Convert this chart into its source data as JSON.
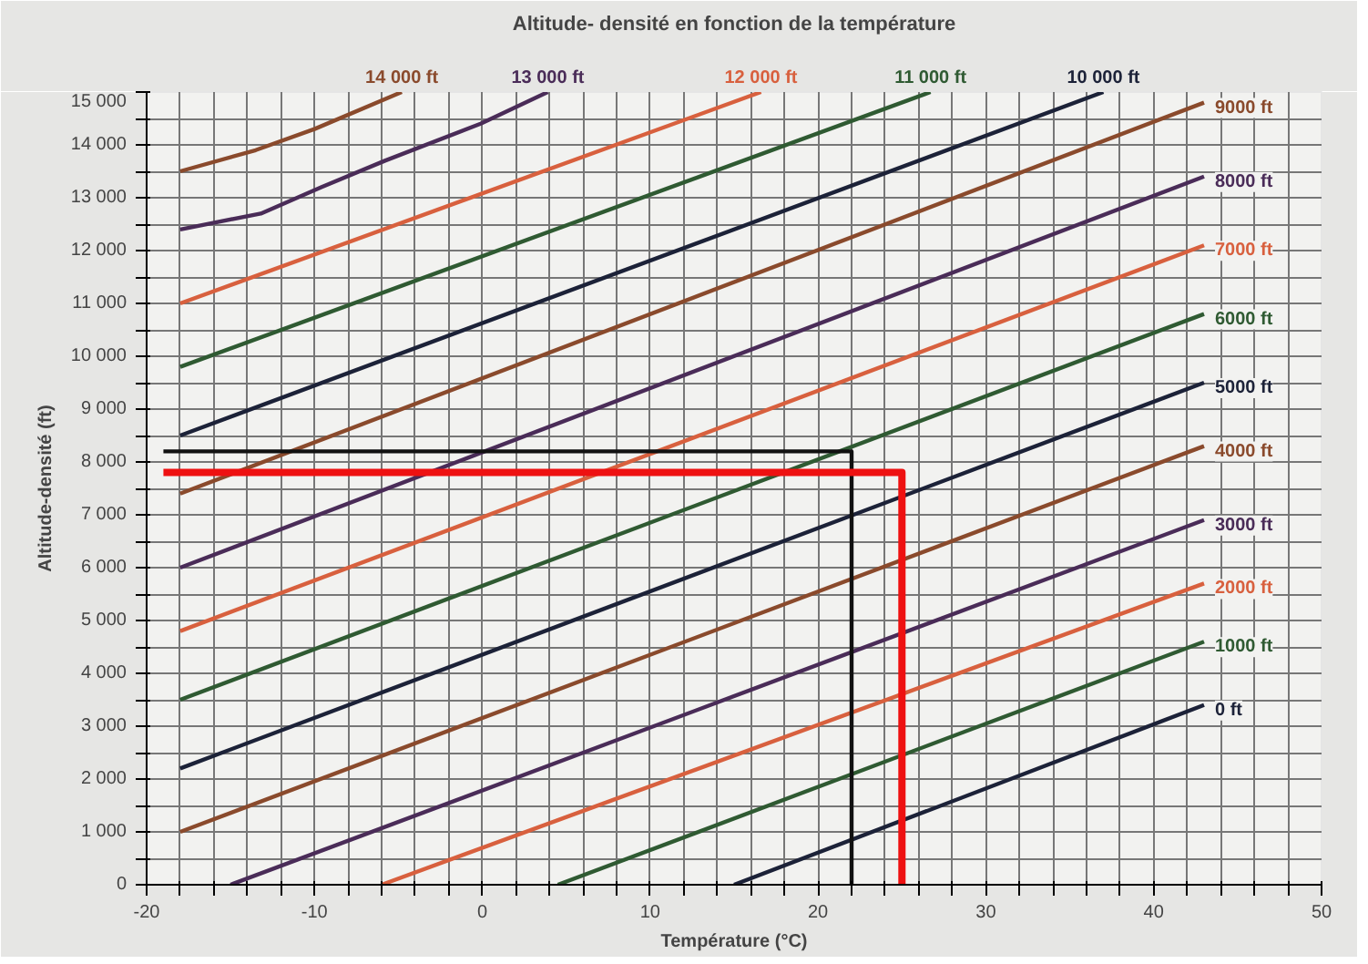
{
  "chart_data": {
    "type": "line",
    "title": "Altitude- densité en fonction de la température",
    "xlabel": "Température (°C)",
    "ylabel": "Altitude-densité (ft)",
    "xlim": [
      -20,
      50
    ],
    "ylim": [
      0,
      15000
    ],
    "xticks": [
      -20,
      {
        "value": -18,
        "label": null
      },
      {
        "value": -16,
        "label": null
      },
      {
        "value": -14,
        "label": null
      },
      {
        "value": -12,
        "label": null
      },
      -10,
      {
        "value": -8,
        "label": null
      },
      {
        "value": -6,
        "label": null
      },
      {
        "value": -4,
        "label": null
      },
      {
        "value": -2,
        "label": null
      },
      0,
      {
        "value": 2,
        "label": null
      },
      {
        "value": 4,
        "label": null
      },
      {
        "value": 6,
        "label": null
      },
      {
        "value": 8,
        "label": null
      },
      10,
      {
        "value": 12,
        "label": null
      },
      {
        "value": 14,
        "label": null
      },
      {
        "value": 16,
        "label": null
      },
      {
        "value": 18,
        "label": null
      },
      20,
      {
        "value": 22,
        "label": null
      },
      {
        "value": 24,
        "label": null
      },
      {
        "value": 26,
        "label": null
      },
      {
        "value": 28,
        "label": null
      },
      30,
      {
        "value": 32,
        "label": null
      },
      {
        "value": 34,
        "label": null
      },
      {
        "value": 36,
        "label": null
      },
      {
        "value": 38,
        "label": null
      },
      40,
      {
        "value": 42,
        "label": null
      },
      {
        "value": 44,
        "label": null
      },
      {
        "value": 46,
        "label": null
      },
      {
        "value": 48,
        "label": null
      },
      50
    ],
    "yticks": [
      0,
      {
        "value": 500,
        "label": null
      },
      {
        "value": 1000,
        "label": "1 000"
      },
      {
        "value": 1500,
        "label": null
      },
      {
        "value": 2000,
        "label": "2 000"
      },
      {
        "value": 2500,
        "label": null
      },
      {
        "value": 3000,
        "label": "3 000"
      },
      {
        "value": 3500,
        "label": null
      },
      {
        "value": 4000,
        "label": "4 000"
      },
      {
        "value": 4500,
        "label": null
      },
      {
        "value": 5000,
        "label": "5 000"
      },
      {
        "value": 5500,
        "label": null
      },
      {
        "value": 6000,
        "label": "6 000"
      },
      {
        "value": 6500,
        "label": null
      },
      {
        "value": 7000,
        "label": "7 000"
      },
      {
        "value": 7500,
        "label": null
      },
      {
        "value": 8000,
        "label": "8 000"
      },
      {
        "value": 8500,
        "label": null
      },
      {
        "value": 9000,
        "label": "9 000"
      },
      {
        "value": 9500,
        "label": null
      },
      {
        "value": 10000,
        "label": "10 000"
      },
      {
        "value": 10500,
        "label": null
      },
      {
        "value": 11000,
        "label": "11 000"
      },
      {
        "value": 11500,
        "label": null
      },
      {
        "value": 12000,
        "label": "12 000"
      },
      {
        "value": 12500,
        "label": null
      },
      {
        "value": 13000,
        "label": "13 000"
      },
      {
        "value": 13500,
        "label": null
      },
      {
        "value": 14000,
        "label": "14 000"
      },
      {
        "value": 14500,
        "label": null
      },
      {
        "value": 15000,
        "label": "15 000"
      }
    ],
    "grid": true,
    "marker": "none",
    "line_style": "solid",
    "series": [
      {
        "name": "0 ft",
        "color": "#1c2238",
        "x": [
          15,
          43
        ],
        "values": [
          0,
          3400
        ]
      },
      {
        "name": "1000 ft",
        "color": "#2f5a32",
        "x": [
          4.5,
          43
        ],
        "values": [
          0,
          4600
        ]
      },
      {
        "name": "2000 ft",
        "color": "#d8603e",
        "x": [
          -6,
          43
        ],
        "values": [
          0,
          5700
        ]
      },
      {
        "name": "3000 ft",
        "color": "#4a2c58",
        "x": [
          -15,
          43
        ],
        "values": [
          0,
          6900
        ]
      },
      {
        "name": "4000 ft",
        "color": "#8a4a2c",
        "x": [
          -18,
          43
        ],
        "values": [
          1000,
          8300
        ]
      },
      {
        "name": "5000 ft",
        "color": "#1c2238",
        "x": [
          -18,
          43
        ],
        "values": [
          2200,
          9500
        ]
      },
      {
        "name": "6000 ft",
        "color": "#2f5a32",
        "x": [
          -18,
          43
        ],
        "values": [
          3500,
          10800
        ]
      },
      {
        "name": "7000 ft",
        "color": "#d8603e",
        "x": [
          -18,
          43
        ],
        "values": [
          4800,
          12100
        ]
      },
      {
        "name": "8000 ft",
        "color": "#4a2c58",
        "x": [
          -18,
          43
        ],
        "values": [
          6000,
          13400
        ]
      },
      {
        "name": "9000 ft",
        "color": "#8a4a2c",
        "x": [
          -18,
          43
        ],
        "values": [
          7400,
          14800
        ]
      },
      {
        "name": "10 000 ft",
        "color": "#1c2238",
        "x": [
          -18,
          37
        ],
        "values": [
          8500,
          15000
        ]
      },
      {
        "name": "11 000 ft",
        "color": "#2f5a32",
        "x": [
          -18,
          26.7
        ],
        "values": [
          9800,
          15000
        ]
      },
      {
        "name": "12 000 ft",
        "color": "#d8603e",
        "x": [
          -18,
          16.6
        ],
        "values": [
          11000,
          15000
        ]
      },
      {
        "name": "13 000 ft",
        "color": "#4a2c58",
        "x": [
          -18,
          -13.2,
          -9.6,
          -5.8,
          -0.1,
          3.9
        ],
        "values": [
          12400,
          12700,
          13200,
          13700,
          14400,
          15000
        ]
      },
      {
        "name": "14 000 ft",
        "color": "#8a4a2c",
        "x": [
          -18,
          -13.5,
          -10,
          -4.8
        ],
        "values": [
          13500,
          13900,
          14300,
          15000
        ]
      },
      {
        "color": "#111111",
        "x": [
          22,
          22,
          -19
        ],
        "values": [
          0,
          8200,
          8200
        ]
      },
      {
        "color": "#ee1111",
        "x": [
          25,
          25,
          -19
        ],
        "values": [
          0,
          7800,
          7800
        ]
      }
    ]
  }
}
